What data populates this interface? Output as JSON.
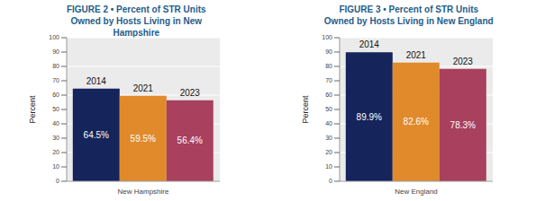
{
  "chart_data": [
    {
      "type": "bar",
      "title": "FIGURE 2 • Percent of STR Units Owned by Hosts Living in New Hampshire",
      "y_label": "Percent",
      "categories": [
        "New Hampshire"
      ],
      "series": [
        {
          "name": "2014",
          "color": "#15245a",
          "values": [
            64.5
          ],
          "value_labels": [
            "64.5%"
          ]
        },
        {
          "name": "2021",
          "color": "#e08a2c",
          "values": [
            59.5
          ],
          "value_labels": [
            "59.5%"
          ]
        },
        {
          "name": "2023",
          "color": "#a8405e",
          "values": [
            56.4
          ],
          "value_labels": [
            "56.4%"
          ]
        }
      ],
      "ylim": [
        0,
        100
      ],
      "yticks": [
        0,
        10,
        20,
        30,
        40,
        50,
        60,
        70,
        80,
        90,
        100
      ],
      "grid": true,
      "data_labels": true
    },
    {
      "type": "bar",
      "title": "FIGURE 3 • Percent of STR Units Owned by Hosts Living in New England",
      "y_label": "Percent",
      "categories": [
        "New England"
      ],
      "series": [
        {
          "name": "2014",
          "color": "#15245a",
          "values": [
            89.9
          ],
          "value_labels": [
            "89.9%"
          ]
        },
        {
          "name": "2021",
          "color": "#e08a2c",
          "values": [
            82.6
          ],
          "value_labels": [
            "82.6%"
          ]
        },
        {
          "name": "2023",
          "color": "#a8405e",
          "values": [
            78.3
          ],
          "value_labels": [
            "78.3%"
          ]
        }
      ],
      "ylim": [
        0,
        100
      ],
      "yticks": [
        0,
        10,
        20,
        30,
        40,
        50,
        60,
        70,
        80,
        90,
        100
      ],
      "grid": true,
      "data_labels": true
    }
  ]
}
